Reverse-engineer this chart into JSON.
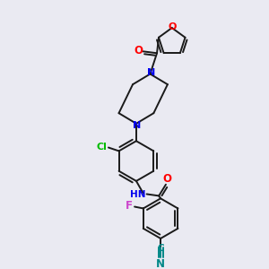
{
  "bg_color": "#eaeaf2",
  "bond_color": "#1a1a1a",
  "atom_colors": {
    "O": "#ff0000",
    "N": "#0000ee",
    "Cl": "#00bb00",
    "F": "#cc44cc",
    "CN": "#008888"
  },
  "lw": 1.4
}
